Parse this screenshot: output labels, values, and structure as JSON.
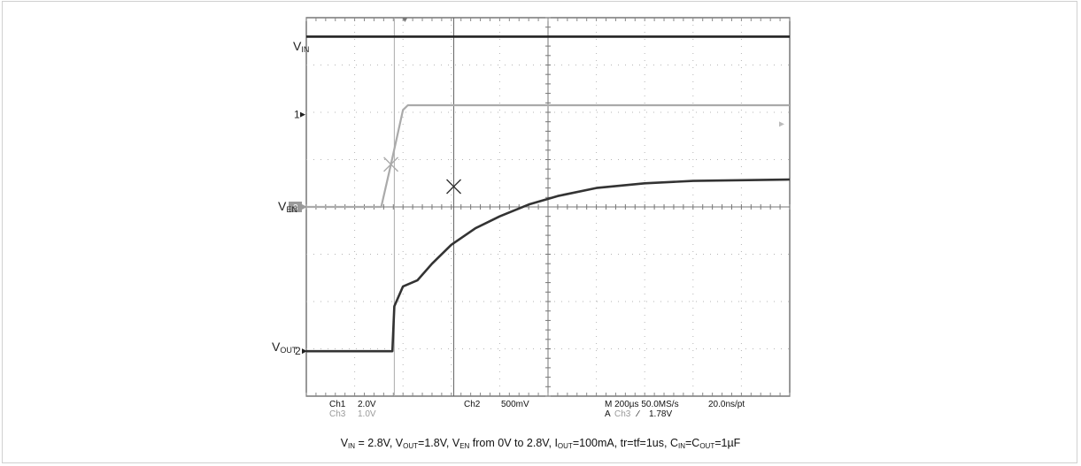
{
  "chart_data": {
    "type": "line",
    "title": "",
    "grid": true,
    "xlim_div": [
      0,
      10
    ],
    "ylim_div": [
      0,
      8
    ],
    "series": [
      {
        "name": "V_IN",
        "color": "#222222",
        "points": [
          [
            0,
            7.6
          ],
          [
            10,
            7.6
          ]
        ]
      },
      {
        "name": "V_EN",
        "color": "#aaaaaa",
        "points": [
          [
            0,
            4.0
          ],
          [
            1.55,
            4.0
          ],
          [
            1.75,
            4.9
          ],
          [
            2.0,
            6.05
          ],
          [
            2.1,
            6.15
          ],
          [
            10,
            6.15
          ]
        ]
      },
      {
        "name": "V_OUT",
        "color": "#333333",
        "points": [
          [
            0,
            0.95
          ],
          [
            1.78,
            0.95
          ],
          [
            1.82,
            1.9
          ],
          [
            2.0,
            2.32
          ],
          [
            2.3,
            2.45
          ],
          [
            2.6,
            2.8
          ],
          [
            3.0,
            3.2
          ],
          [
            3.5,
            3.55
          ],
          [
            4.0,
            3.8
          ],
          [
            4.6,
            4.05
          ],
          [
            5.2,
            4.23
          ],
          [
            6.0,
            4.4
          ],
          [
            7.0,
            4.5
          ],
          [
            8.0,
            4.55
          ],
          [
            10,
            4.58
          ]
        ]
      }
    ],
    "markers": [
      {
        "x": 1.75,
        "y": 4.9,
        "color": "#aaaaaa"
      },
      {
        "x": 3.05,
        "y": 4.43,
        "color": "#333333"
      }
    ],
    "trigger_x": 1.82,
    "cursor_x": 3.05,
    "channel_markers": {
      "ch1": "1",
      "ch3": "3",
      "ch2": "2"
    }
  },
  "labels": {
    "vin": {
      "main": "V",
      "sub": "IN"
    },
    "ven": {
      "main": "V",
      "sub": "EN"
    },
    "vout": {
      "main": "V",
      "sub": "OUT"
    }
  },
  "scope_readout": {
    "ch1": "Ch1",
    "ch1_scale": "2.0V",
    "ch3": "Ch3",
    "ch3_scale": "1.0V",
    "ch2": "Ch2",
    "ch2_scale": "500mV",
    "timebase": "M 200µs 50.0MS/s",
    "record": "20.0ns/pt",
    "trigger_a": "A",
    "trigger_ch": "Ch3",
    "trigger_slope": "∕",
    "trigger_level": "1.78V"
  },
  "caption": {
    "p1": "V",
    "p1_sub": "IN",
    "p2": " = 2.8V,  V",
    "p2_sub": "OUT",
    "p3": "=1.8V, V",
    "p3_sub": "EN",
    "p4": " from 0V to 2.8V, I",
    "p4_sub": "OUT",
    "p5": "=100mA, tr=tf=1us, C",
    "p5_sub": "IN",
    "p6": "=C",
    "p6_sub": "OUT",
    "p7": "=1µF"
  }
}
